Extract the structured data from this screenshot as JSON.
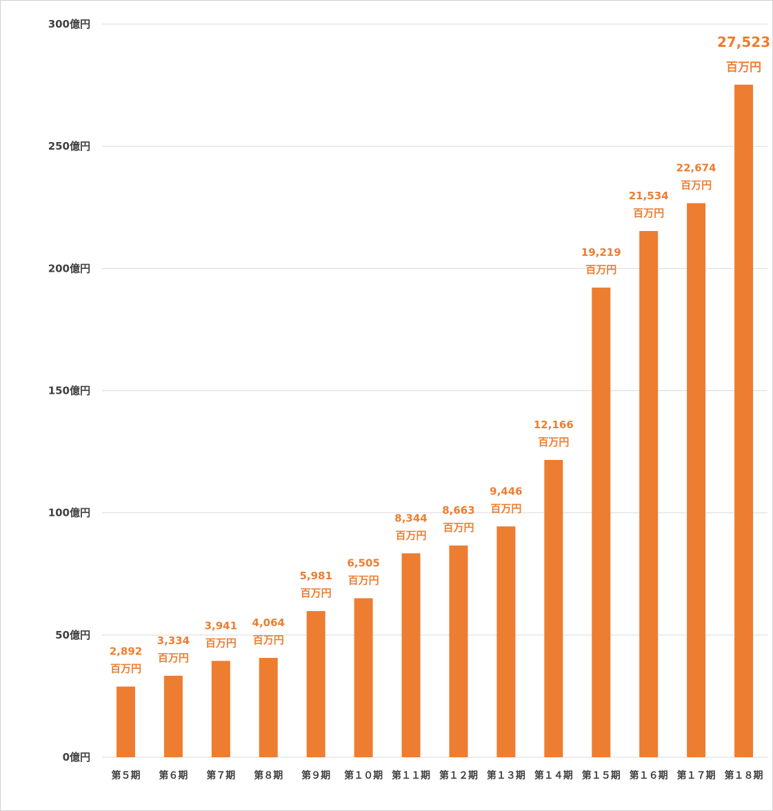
{
  "chart_data": {
    "type": "bar",
    "title": "",
    "xlabel": "",
    "ylabel": "",
    "ylim": [
      0,
      300
    ],
    "yticks": [
      {
        "value": 0,
        "label": "0億円"
      },
      {
        "value": 50,
        "label": "50億円"
      },
      {
        "value": 100,
        "label": "100億円"
      },
      {
        "value": 150,
        "label": "150億円"
      },
      {
        "value": 200,
        "label": "200億円"
      },
      {
        "value": 250,
        "label": "250億円"
      },
      {
        "value": 300,
        "label": "300億円"
      }
    ],
    "grid": true,
    "colors": {
      "bar": "#ed7d31",
      "label": "#ed7d31",
      "grid": "#d9d9d9",
      "axis_text": "#404040"
    },
    "unit_label": "百万円",
    "categories": [
      "第５期",
      "第６期",
      "第７期",
      "第８期",
      "第９期",
      "第１０期",
      "第１１期",
      "第１２期",
      "第１３期",
      "第１４期",
      "第１５期",
      "第１６期",
      "第１７期",
      "第１８期"
    ],
    "values": [
      28.92,
      33.34,
      39.41,
      40.64,
      59.81,
      65.05,
      83.44,
      86.63,
      94.46,
      121.66,
      192.19,
      215.34,
      226.74,
      275.23
    ],
    "data_labels": [
      "2,892",
      "3,334",
      "3,941",
      "4,064",
      "5,981",
      "6,505",
      "8,344",
      "8,663",
      "9,446",
      "12,166",
      "19,219",
      "21,534",
      "22,674",
      "27,523"
    ],
    "highlight_last": true
  }
}
